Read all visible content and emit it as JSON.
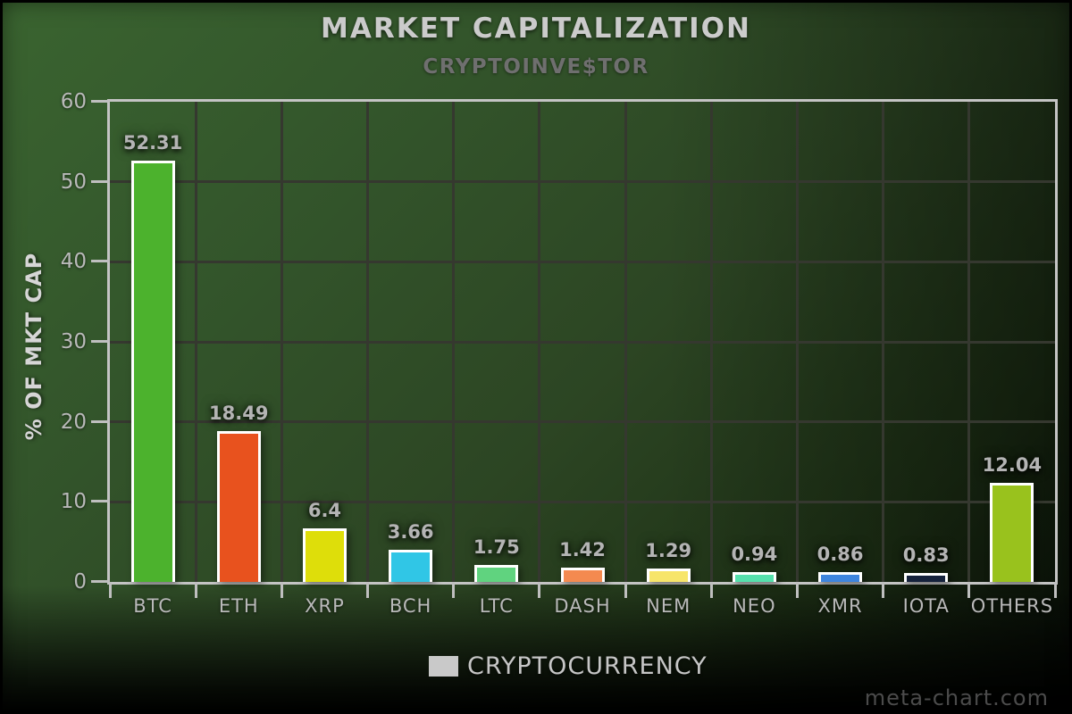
{
  "header": {
    "title": "MARKET CAPITALIZATION",
    "subtitle": "CRYPTOINVE$TOR"
  },
  "axes": {
    "y_title": "% OF MKT CAP"
  },
  "legend": {
    "label": "CRYPTOCURRENCY",
    "swatch_color": "#c9c9c9"
  },
  "window": {
    "watermark": "meta-chart.com"
  },
  "chart_data": {
    "type": "bar",
    "title": "MARKET CAPITALIZATION",
    "subtitle": "CRYPTOINVE$TOR",
    "categories": [
      "BTC",
      "ETH",
      "XRP",
      "BCH",
      "LTC",
      "DASH",
      "NEM",
      "NEO",
      "XMR",
      "IOTA",
      "OTHERS"
    ],
    "values": [
      52.31,
      18.49,
      6.4,
      3.66,
      1.75,
      1.42,
      1.29,
      0.94,
      0.86,
      0.83,
      12.04
    ],
    "value_labels": [
      "52.31",
      "18.49",
      "6.4",
      "3.66",
      "1.75",
      "1.42",
      "1.29",
      "0.94",
      "0.86",
      "0.83",
      "12.04"
    ],
    "bar_colors": [
      "#4cb22d",
      "#e8521e",
      "#dede0a",
      "#30c6e6",
      "#60d37f",
      "#f48a50",
      "#f7e56a",
      "#55e0ac",
      "#3e85de",
      "#15223c",
      "#99c21d"
    ],
    "xlabel": "",
    "ylabel": "% OF MKT CAP",
    "ylim": [
      0,
      60
    ],
    "yticks": [
      0,
      10,
      20,
      30,
      40,
      50,
      60
    ],
    "grid": true,
    "legend_entries": [
      "CRYPTOCURRENCY"
    ],
    "legend_position": "bottom",
    "watermark": "meta-chart.com"
  }
}
